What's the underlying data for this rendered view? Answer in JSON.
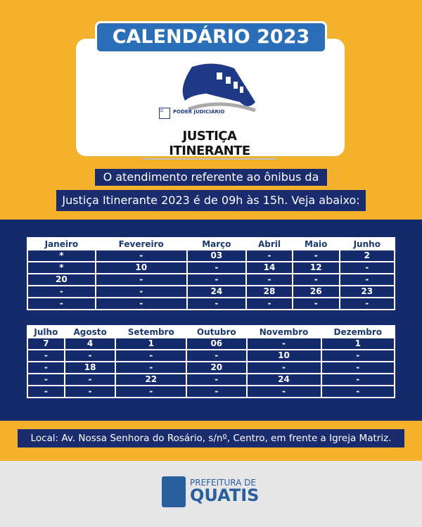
{
  "title": "CALENDÁRIO 2023",
  "logo": {
    "org": "PODER JUDICIÁRIO",
    "name": "JUSTIÇA ITINERANTE"
  },
  "intro": {
    "line1": "O atendimento referente ao ônibus da",
    "line2": "Justiça Itinerante 2023 é de 09h às 15h. Veja abaixo:"
  },
  "table1": {
    "headers": [
      "Janeiro",
      "Fevereiro",
      "Março",
      "Abril",
      "Maio",
      "Junho"
    ],
    "rows": [
      [
        "*",
        "-",
        "03",
        "-",
        "-",
        "2"
      ],
      [
        "*",
        "10",
        "-",
        "14",
        "12",
        "-"
      ],
      [
        "20",
        "-",
        "-",
        "-",
        "-",
        "-"
      ],
      [
        "-",
        "-",
        "24",
        "28",
        "26",
        "23"
      ],
      [
        "-",
        "-",
        "-",
        "-",
        "-",
        "-"
      ]
    ]
  },
  "table2": {
    "headers": [
      "Julho",
      "Agosto",
      "Setembro",
      "Outubro",
      "Novembro",
      "Dezembro"
    ],
    "rows": [
      [
        "7",
        "4",
        "1",
        "06",
        "-",
        "1"
      ],
      [
        "-",
        "-",
        "-",
        "-",
        "10",
        "-"
      ],
      [
        "-",
        "18",
        "-",
        "20",
        "-",
        "-"
      ],
      [
        "-",
        "-",
        "22",
        "-",
        "24",
        "-"
      ],
      [
        "-",
        "-",
        "-",
        "-",
        "-",
        "-"
      ]
    ]
  },
  "location": "Local: Av. Nossa Senhora do Rosário, s/nº, Centro, em frente a Igreja Matriz.",
  "footer": {
    "line1": "PREFEITURA DE",
    "line2": "QUATIS"
  },
  "colors": {
    "yellow": "#f4b12c",
    "navy": "#152a6b",
    "blue": "#2a6fb8"
  }
}
